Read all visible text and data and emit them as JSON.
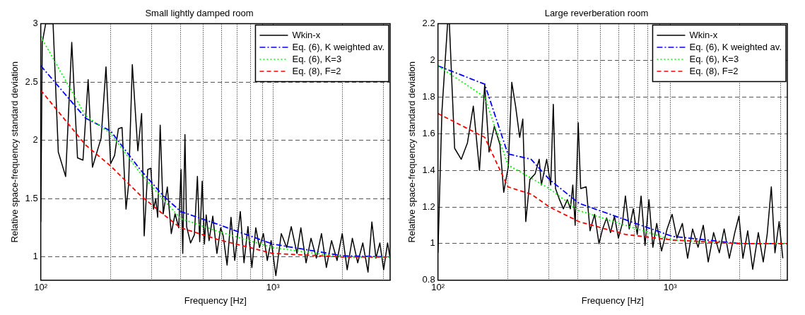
{
  "chart_data": [
    {
      "type": "line",
      "title": "Small lightly damped room",
      "xlabel": "Frequency [Hz]",
      "ylabel": "Relative space-frequency standard deviation",
      "log": "x",
      "grid": true,
      "legend": "top right",
      "xlim": [
        100,
        3200
      ],
      "ylim": [
        0.8,
        3
      ],
      "xticks": [
        {
          "value": 100,
          "label": "10²"
        },
        {
          "value": 200,
          "label": null
        },
        {
          "value": 300,
          "label": null
        },
        {
          "value": 400,
          "label": null
        },
        {
          "value": 500,
          "label": null
        },
        {
          "value": 600,
          "label": null
        },
        {
          "value": 700,
          "label": null
        },
        {
          "value": 800,
          "label": null
        },
        {
          "value": 900,
          "label": null
        },
        {
          "value": 1000,
          "label": "10³"
        },
        {
          "value": 2000,
          "label": null
        },
        {
          "value": 3000,
          "label": null
        }
      ],
      "yticks": [
        1,
        1.5,
        2,
        2.5,
        3
      ],
      "series": [
        {
          "name": "Wkin-x",
          "color": "#000000",
          "line_style": "solid",
          "x": [
            100,
            101.5,
            105,
            108,
            113,
            119,
            128,
            136,
            144,
            152,
            160,
            167,
            182,
            191,
            200,
            208,
            216,
            224,
            233,
            239,
            248,
            262,
            272,
            279,
            289,
            298,
            306,
            313,
            319,
            327,
            337,
            351,
            365,
            379,
            393,
            402,
            409,
            418,
            425,
            442,
            459,
            473,
            484,
            496,
            507,
            516,
            531,
            551,
            574,
            596,
            611,
            635,
            660,
            685,
            724,
            751,
            781,
            812,
            844,
            876,
            910,
            946,
            983,
            1030,
            1087,
            1147,
            1200,
            1270,
            1320,
            1390,
            1460,
            1540,
            1620,
            1700,
            1790,
            1890,
            1990,
            2090,
            2200,
            2320,
            2440,
            2570,
            2670,
            2780,
            2890,
            3000,
            3120,
            3200
          ],
          "values": [
            1.3,
            2.84,
            3,
            3,
            3,
            1.9,
            1.69,
            2.84,
            1.85,
            1.83,
            2.52,
            1.77,
            2.02,
            2.63,
            1.8,
            1.87,
            2.1,
            2.11,
            1.41,
            1.62,
            2.65,
            1.91,
            2.23,
            1.18,
            1.75,
            1.76,
            1.41,
            1.5,
            1.34,
            2.13,
            1.37,
            1.6,
            1.2,
            1.37,
            1.25,
            1.75,
            1.03,
            2.05,
            1.26,
            1.12,
            1.19,
            1.69,
            1.13,
            1.65,
            1.11,
            1.36,
            1.14,
            1.35,
            1.03,
            1.25,
            1.18,
            0.93,
            1.34,
            0.97,
            1.39,
            0.95,
            1.26,
            0.91,
            1.25,
            1.08,
            1.2,
            0.97,
            1.14,
            0.84,
            1.2,
            1.08,
            1.26,
            1.03,
            1.25,
            0.95,
            1.16,
            0.99,
            1.2,
            0.91,
            1.14,
            0.97,
            1.2,
            0.89,
            1.16,
            0.95,
            1.12,
            0.87,
            1.3,
            0.99,
            1.12,
            0.89,
            1.12,
            0.99
          ]
        },
        {
          "name": "Eq. (6), K weighted av.",
          "color": "#0000ff",
          "line_style": "dashdot",
          "x": [
            100,
            156,
            200,
            268,
            335,
            400,
            578,
            1000,
            2000,
            3200
          ],
          "values": [
            2.64,
            2.19,
            2.08,
            1.75,
            1.53,
            1.39,
            1.28,
            1.11,
            1.01,
            1
          ]
        },
        {
          "name": "Eq. (6), K=3",
          "color": "#00ff00",
          "line_style": "dotted",
          "x": [
            100,
            156,
            200,
            268,
            335,
            400,
            578,
            1000,
            2000,
            3200
          ],
          "values": [
            2.89,
            2.21,
            2.06,
            1.72,
            1.5,
            1.33,
            1.22,
            1.08,
            1,
            1
          ]
        },
        {
          "name": "Eq. (8), F=2",
          "color": "#ff0000",
          "line_style": "dashed",
          "x": [
            100,
            156,
            200,
            268,
            335,
            400,
            578,
            1000,
            2000,
            3200
          ],
          "values": [
            2.43,
            1.96,
            1.78,
            1.53,
            1.37,
            1.25,
            1.15,
            1.03,
            1,
            1
          ]
        }
      ]
    },
    {
      "type": "line",
      "title": "Large reverberation room",
      "xlabel": "Frequency [Hz]",
      "ylabel": "Relative space-frequency standard deviation",
      "log": "x",
      "grid": true,
      "legend": "top right",
      "xlim": [
        100,
        3200
      ],
      "ylim": [
        0.8,
        2.2
      ],
      "xticks": [
        {
          "value": 100,
          "label": "10²"
        },
        {
          "value": 200,
          "label": null
        },
        {
          "value": 300,
          "label": null
        },
        {
          "value": 400,
          "label": null
        },
        {
          "value": 500,
          "label": null
        },
        {
          "value": 600,
          "label": null
        },
        {
          "value": 700,
          "label": null
        },
        {
          "value": 800,
          "label": null
        },
        {
          "value": 900,
          "label": null
        },
        {
          "value": 1000,
          "label": "10³"
        },
        {
          "value": 2000,
          "label": null
        },
        {
          "value": 3000,
          "label": null
        }
      ],
      "yticks": [
        0.8,
        1,
        1.2,
        1.4,
        1.6,
        1.8,
        2,
        2.2
      ],
      "series": [
        {
          "name": "Wkin-x",
          "color": "#000000",
          "line_style": "solid",
          "x": [
            100,
            104,
            110,
            112,
            118,
            126,
            134,
            142,
            151,
            159,
            166,
            175,
            185,
            192,
            197,
            201,
            208,
            216,
            225,
            232,
            239,
            249,
            262,
            273,
            279,
            294,
            306,
            314,
            321,
            334,
            347,
            361,
            372,
            381,
            390,
            402,
            412,
            435,
            452,
            473,
            494,
            512,
            533,
            554,
            576,
            599,
            623,
            642,
            667,
            694,
            722,
            750,
            780,
            811,
            843,
            876,
            919,
            971,
            1020,
            1070,
            1130,
            1190,
            1250,
            1320,
            1390,
            1460,
            1540,
            1630,
            1710,
            1800,
            1900,
            1980,
            2060,
            2160,
            2270,
            2400,
            2520,
            2620,
            2730,
            2830,
            2950,
            3060
          ],
          "values": [
            0.95,
            1.72,
            2.2,
            2.2,
            1.52,
            1.46,
            1.55,
            1.75,
            1.4,
            1.87,
            1.5,
            1.64,
            1.54,
            1.28,
            1.36,
            1.42,
            1.88,
            1.75,
            1.58,
            1.68,
            1.12,
            1.35,
            1.38,
            1.46,
            1.32,
            1.46,
            1.32,
            1.76,
            1.3,
            1.24,
            1.19,
            1.24,
            1.19,
            1.32,
            1.1,
            1.66,
            1.3,
            1.31,
            1.07,
            1.16,
            1,
            1.08,
            1.14,
            1.06,
            1.15,
            1.03,
            1.11,
            1.26,
            1.08,
            1.19,
            1.05,
            1.26,
            0.99,
            1.24,
            0.98,
            1.11,
            0.96,
            1.08,
            1.16,
            1.03,
            1.11,
            0.92,
            1.08,
            0.98,
            1.1,
            0.9,
            1.06,
            0.95,
            1.08,
            0.92,
            1.06,
            1.15,
            0.92,
            1.07,
            0.86,
            1.06,
            0.9,
            1.05,
            1.31,
            0.95,
            1.12,
            0.92
          ]
        },
        {
          "name": "Eq. (6), K weighted av.",
          "color": "#0000ff",
          "line_style": "dashdot",
          "x": [
            100,
            159,
            200,
            252,
            302,
            405,
            1020,
            2000,
            3200
          ],
          "values": [
            1.97,
            1.87,
            1.49,
            1.46,
            1.35,
            1.22,
            1.04,
            1,
            1
          ]
        },
        {
          "name": "Eq. (6), K=3",
          "color": "#00ff00",
          "line_style": "dotted",
          "x": [
            100,
            159,
            200,
            302,
            405,
            1020,
            2000,
            3200
          ],
          "values": [
            1.97,
            1.8,
            1.43,
            1.3,
            1.18,
            1.02,
            1,
            1
          ]
        },
        {
          "name": "Eq. (8), F=2",
          "color": "#ff0000",
          "line_style": "dashed",
          "x": [
            100,
            159,
            200,
            252,
            302,
            405,
            642,
            1020,
            2000,
            3200
          ],
          "values": [
            1.71,
            1.58,
            1.31,
            1.27,
            1.2,
            1.12,
            1.05,
            1.02,
            1,
            1
          ]
        }
      ]
    }
  ]
}
